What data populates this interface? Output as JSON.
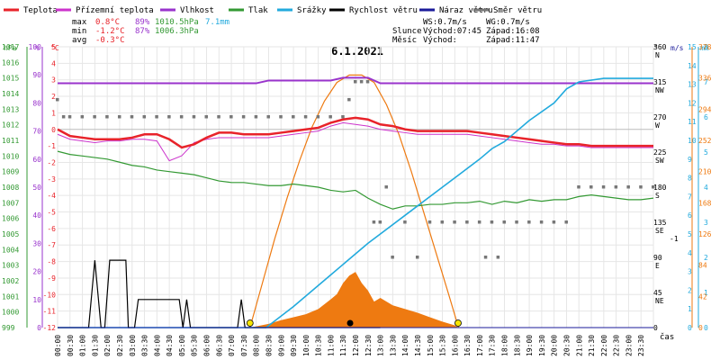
{
  "chart_data": {
    "type": "line",
    "title": "6.1.2021",
    "legend": [
      {
        "label": "Teplota",
        "color": "#e8232a"
      },
      {
        "label": "Přízemní teplota",
        "color": "#cc33cc"
      },
      {
        "label": "Vlhkost",
        "color": "#9933cc"
      },
      {
        "label": "Tlak",
        "color": "#339933"
      },
      {
        "label": "Srážky",
        "color": "#22aadd"
      },
      {
        "label": "Rychlost větru",
        "color": "#000000"
      },
      {
        "label": "Náraz větru",
        "color": "#1a1a9a"
      },
      {
        "label": "Směr větru",
        "color": "#777777"
      }
    ],
    "stats": {
      "max": {
        "label": "max",
        "temp": "0.8°C",
        "hum": "89%",
        "press": "1010.5hPa",
        "rain": "7.1mm"
      },
      "min": {
        "label": "min",
        "temp": "-1.2°C",
        "hum": "87%",
        "press": "1006.3hPa"
      },
      "avg": {
        "label": "avg",
        "temp": "-0.3°C"
      }
    },
    "wind_info": {
      "ws": "WS:0.7m/s",
      "wg": "WG:0.7m/s"
    },
    "sun": {
      "label": "Slunce",
      "rise": "Východ:07:45",
      "set": "Západ:16:08"
    },
    "moon": {
      "label": "Měsíc",
      "rise": "Východ:",
      "set": "Západ:11:47"
    },
    "axes": {
      "hpa": {
        "unit": "hPa",
        "ticks": [
          "1017",
          "1016",
          "1015",
          "1014",
          "1013",
          "1012",
          "1011",
          "1010",
          "1009",
          "1008",
          "1007",
          "1006",
          "1005",
          "1004",
          "1003",
          "1002",
          "1001",
          "1000",
          "999"
        ]
      },
      "pct": {
        "unit": "%",
        "ticks": [
          "100",
          "90",
          "80",
          "70",
          "60",
          "50",
          "40",
          "30",
          "20",
          "10",
          "0"
        ]
      },
      "degc": {
        "unit": "°C",
        "ticks": [
          "5",
          "4",
          "3",
          "2",
          "1",
          "0",
          "-1",
          "-2",
          "-3",
          "-4",
          "-5",
          "-6",
          "-7",
          "-8",
          "-9",
          "-10",
          "-11",
          "-12"
        ]
      },
      "dir": {
        "unit": "°",
        "ticks": [
          "360",
          "315",
          "270",
          "225",
          "180",
          "135",
          "90",
          "45",
          "0"
        ],
        "compass": [
          "N",
          "NW",
          "W",
          "SW",
          "S",
          "SE",
          "E",
          "NE"
        ]
      },
      "ms": {
        "unit": "m/s",
        "ticks": [
          "15",
          "14",
          "13",
          "12",
          "11",
          "10",
          "9",
          "8",
          "7",
          "6",
          "5",
          "4",
          "3",
          "2",
          "1",
          "0"
        ]
      },
      "mm": {
        "unit": "mm",
        "ticks": [
          "8",
          "7",
          "6",
          "5",
          "4",
          "3",
          "2",
          "1",
          "0"
        ]
      },
      "solar": {
        "ticks": [
          "378",
          "336",
          "294",
          "252",
          "210",
          "168",
          "126",
          "84",
          "42",
          "0"
        ]
      },
      "x": {
        "label": "čas",
        "ticks": [
          "00:00",
          "00:30",
          "01:00",
          "01:30",
          "02:00",
          "02:30",
          "03:00",
          "03:30",
          "04:00",
          "04:30",
          "05:00",
          "05:30",
          "06:00",
          "06:30",
          "07:00",
          "07:30",
          "08:00",
          "08:30",
          "09:00",
          "09:30",
          "10:00",
          "10:30",
          "11:00",
          "11:30",
          "12:00",
          "12:30",
          "13:00",
          "13:30",
          "14:00",
          "14:30",
          "15:00",
          "15:30",
          "16:00",
          "16:30",
          "17:00",
          "17:30",
          "18:00",
          "18:30",
          "19:00",
          "19:30",
          "20:00",
          "20:30",
          "21:00",
          "21:30",
          "22:00",
          "22:30",
          "23:00",
          "23:30"
        ]
      }
    },
    "series": [
      {
        "name": "Teplota",
        "unit": "°C",
        "color": "#e8232a",
        "x": [
          0,
          0.5,
          1,
          1.5,
          2,
          2.5,
          3,
          3.5,
          4,
          4.5,
          5,
          5.5,
          6,
          6.5,
          7,
          7.5,
          8,
          8.5,
          9,
          9.5,
          10,
          10.5,
          11,
          11.5,
          12,
          12.5,
          13,
          13.5,
          14,
          14.5,
          15,
          15.5,
          16,
          16.5,
          17,
          17.5,
          18,
          18.5,
          19,
          19.5,
          20,
          20.5,
          21,
          21.5,
          22,
          22.5,
          23,
          23.5,
          24
        ],
        "values": [
          0,
          -0.4,
          -0.5,
          -0.6,
          -0.6,
          -0.6,
          -0.5,
          -0.3,
          -0.3,
          -0.6,
          -1.1,
          -0.9,
          -0.5,
          -0.2,
          -0.2,
          -0.3,
          -0.3,
          -0.3,
          -0.2,
          -0.1,
          0,
          0.1,
          0.4,
          0.6,
          0.7,
          0.6,
          0.3,
          0.2,
          0,
          -0.1,
          -0.1,
          -0.1,
          -0.1,
          -0.1,
          -0.2,
          -0.3,
          -0.4,
          -0.5,
          -0.6,
          -0.7,
          -0.8,
          -0.9,
          -0.9,
          -1.0,
          -1.0,
          -1.0,
          -1.0,
          -1.0,
          -1.0
        ]
      },
      {
        "name": "Přízemní teplota",
        "unit": "°C",
        "color": "#cc33cc",
        "x": [
          0,
          0.5,
          1,
          1.5,
          2,
          2.5,
          3,
          3.5,
          4,
          4.5,
          5,
          5.5,
          6,
          6.5,
          7,
          7.5,
          8,
          8.5,
          9,
          9.5,
          10,
          10.5,
          11,
          11.5,
          12,
          12.5,
          13,
          13.5,
          14,
          14.5,
          15,
          15.5,
          16,
          16.5,
          17,
          17.5,
          18,
          18.5,
          19,
          19.5,
          20,
          20.5,
          21,
          21.5,
          22,
          22.5,
          23,
          23.5,
          24
        ],
        "values": [
          -0.3,
          -0.6,
          -0.7,
          -0.8,
          -0.7,
          -0.7,
          -0.6,
          -0.6,
          -0.7,
          -1.9,
          -1.6,
          -0.8,
          -0.6,
          -0.5,
          -0.5,
          -0.5,
          -0.5,
          -0.5,
          -0.4,
          -0.3,
          -0.2,
          -0.1,
          0.2,
          0.4,
          0.3,
          0.2,
          0,
          -0.1,
          -0.2,
          -0.3,
          -0.3,
          -0.3,
          -0.3,
          -0.3,
          -0.4,
          -0.5,
          -0.6,
          -0.7,
          -0.8,
          -0.9,
          -0.9,
          -1.0,
          -1.0,
          -1.1,
          -1.1,
          -1.1,
          -1.1,
          -1.1,
          -1.1
        ]
      },
      {
        "name": "Vlhkost",
        "unit": "%",
        "color": "#9933cc",
        "x": [
          0,
          2,
          4,
          6,
          8,
          8.5,
          11,
          11.5,
          12.5,
          13,
          24
        ],
        "values": [
          87,
          87,
          87,
          87,
          87,
          88,
          88,
          89,
          89,
          87,
          87
        ]
      },
      {
        "name": "Tlak",
        "unit": "hPa",
        "color": "#339933",
        "x": [
          0,
          0.5,
          1,
          1.5,
          2,
          2.5,
          3,
          3.5,
          4,
          4.5,
          5,
          5.5,
          6,
          6.5,
          7,
          7.5,
          8,
          8.5,
          9,
          9.5,
          10,
          10.5,
          11,
          11.5,
          12,
          12.5,
          13,
          13.5,
          14,
          14.5,
          15,
          15.5,
          16,
          16.5,
          17,
          17.5,
          18,
          18.5,
          19,
          19.5,
          20,
          20.5,
          21,
          21.5,
          22,
          22.5,
          23,
          23.5,
          24
        ],
        "values": [
          1010.3,
          1010.1,
          1010.0,
          1009.9,
          1009.8,
          1009.6,
          1009.4,
          1009.3,
          1009.1,
          1009.0,
          1008.9,
          1008.8,
          1008.6,
          1008.4,
          1008.3,
          1008.3,
          1008.2,
          1008.1,
          1008.1,
          1008.2,
          1008.1,
          1008.0,
          1007.8,
          1007.7,
          1007.8,
          1007.3,
          1006.9,
          1006.6,
          1006.8,
          1006.8,
          1006.9,
          1006.9,
          1007.0,
          1007.0,
          1007.1,
          1006.9,
          1007.1,
          1007.0,
          1007.2,
          1007.1,
          1007.2,
          1007.2,
          1007.4,
          1007.5,
          1007.4,
          1007.3,
          1007.2,
          1007.2,
          1007.3
        ]
      },
      {
        "name": "Srážky",
        "unit": "mm",
        "color": "#22aadd",
        "x": [
          0,
          8.4,
          9.5,
          11,
          12.5,
          14,
          15.5,
          17,
          17.5,
          18,
          19,
          20,
          20.5,
          21,
          22,
          23,
          24
        ],
        "values": [
          0,
          0,
          0.6,
          1.5,
          2.4,
          3.2,
          4.0,
          4.8,
          5.1,
          5.3,
          5.9,
          6.4,
          6.8,
          7.0,
          7.1,
          7.1,
          7.1
        ]
      },
      {
        "name": "Rychlost větru",
        "unit": "m/s",
        "color": "#000000",
        "x": [
          0,
          1.25,
          1.5,
          1.75,
          1.9,
          2.1,
          2.2,
          2.75,
          2.85,
          3.1,
          3.25,
          3.35,
          4.9,
          5.05,
          5.2,
          5.35,
          7.25,
          7.4,
          7.55,
          7.7,
          10,
          13
        ],
        "values": [
          0,
          0,
          3.6,
          0,
          0,
          3.6,
          3.6,
          3.6,
          0,
          0,
          1.5,
          1.5,
          1.5,
          0,
          1.5,
          0,
          0,
          1.5,
          0,
          0,
          0,
          0
        ]
      },
      {
        "name": "Náraz větru",
        "unit": "m/s",
        "color": "#1a1a9a",
        "x": [
          0,
          8,
          8.1,
          11.5,
          12.5,
          12.6,
          24
        ],
        "values": [
          0,
          0,
          0,
          0,
          0,
          0,
          0
        ]
      },
      {
        "name": "Směr větru",
        "unit": "°",
        "color": "#777777",
        "x": [
          0,
          0.25,
          0.5,
          1,
          1.5,
          2,
          2.5,
          3,
          3.5,
          4,
          4.5,
          5,
          5.5,
          6,
          6.5,
          7,
          7.5,
          8,
          8.5,
          9,
          9.5,
          10,
          10.5,
          11,
          11.5,
          11.75,
          12,
          12.25,
          12.5,
          12.75,
          13,
          13.25,
          13.5,
          14,
          14.5,
          15,
          15.5,
          16,
          16.5,
          17,
          17.25,
          17.5,
          17.75,
          18,
          18.5,
          19,
          19.5,
          20,
          20.5,
          21,
          21.5,
          22,
          22.5,
          23,
          23.5,
          24
        ],
        "values": [
          292,
          270,
          270,
          270,
          270,
          270,
          270,
          270,
          270,
          270,
          270,
          270,
          270,
          270,
          270,
          270,
          270,
          270,
          270,
          270,
          270,
          270,
          270,
          270,
          270,
          292,
          315,
          315,
          315,
          135,
          135,
          180,
          90,
          135,
          90,
          135,
          135,
          135,
          135,
          135,
          90,
          135,
          90,
          135,
          135,
          135,
          135,
          135,
          135,
          180,
          180,
          180,
          180,
          180,
          180,
          180
        ]
      },
      {
        "name": "Solar",
        "unit": "W/m²",
        "color": "#ee7a11",
        "x": [
          7.75,
          8.25,
          8.75,
          9.25,
          9.75,
          10.25,
          10.75,
          11.25,
          11.75,
          12.25,
          12.75,
          13.25,
          13.75,
          14.25,
          14.75,
          15.25,
          15.75,
          16.15
        ],
        "values": [
          0,
          60,
          120,
          175,
          225,
          270,
          305,
          330,
          340,
          340,
          330,
          300,
          260,
          210,
          155,
          100,
          45,
          0
        ]
      },
      {
        "name": "Solar actual",
        "unit": "W/m²",
        "color": "#ee7a11",
        "x": [
          7.75,
          8.5,
          9,
          9.5,
          10,
          10.5,
          11,
          11.25,
          11.5,
          11.75,
          12,
          12.25,
          12.5,
          12.75,
          13,
          13.5,
          14,
          14.5,
          15,
          15.5,
          16,
          16.15
        ],
        "values": [
          0,
          5,
          10,
          14,
          18,
          25,
          38,
          45,
          60,
          70,
          75,
          60,
          50,
          35,
          40,
          30,
          25,
          20,
          14,
          8,
          3,
          0
        ]
      }
    ],
    "ylim_temp": [
      -12,
      5
    ],
    "xlim": [
      0,
      24
    ],
    "grid": true
  }
}
